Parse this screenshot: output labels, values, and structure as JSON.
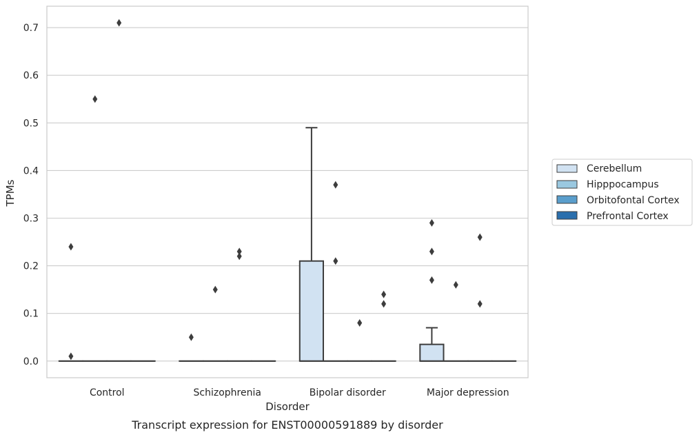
{
  "chart_data": {
    "type": "box",
    "caption": "Transcript expression for ENST00000591889 by disorder",
    "xlabel": "Disorder",
    "ylabel": "TPMs",
    "ylim": [
      -0.035,
      0.745
    ],
    "yticks": [
      0.0,
      0.1,
      0.2,
      0.3,
      0.4,
      0.5,
      0.6,
      0.7
    ],
    "ytick_labels": [
      "0.0",
      "0.1",
      "0.2",
      "0.3",
      "0.4",
      "0.5",
      "0.6",
      "0.7"
    ],
    "grid": "horizontal",
    "categories": [
      "Control",
      "Schizophrenia",
      "Bipolar disorder",
      "Major depression"
    ],
    "legend": {
      "placement": "right, outside plot"
    },
    "series": [
      {
        "name": "Cerebellum",
        "color": "#d1e2f2",
        "boxes": [
          {
            "q1": 0,
            "median": 0,
            "q3": 0,
            "whisker_low": 0,
            "whisker_high": 0,
            "outliers": [
              0.01,
              0.24
            ]
          },
          {
            "q1": 0,
            "median": 0,
            "q3": 0,
            "whisker_low": 0,
            "whisker_high": 0,
            "outliers": [
              0.05
            ]
          },
          {
            "q1": 0,
            "median": 0,
            "q3": 0.21,
            "whisker_low": 0,
            "whisker_high": 0.49,
            "outliers": []
          },
          {
            "q1": 0,
            "median": 0,
            "q3": 0.035,
            "whisker_low": 0,
            "whisker_high": 0.07,
            "outliers": [
              0.17,
              0.23,
              0.29
            ]
          }
        ]
      },
      {
        "name": "Hipppocampus",
        "color": "#9ac8e0",
        "boxes": [
          {
            "q1": 0,
            "median": 0,
            "q3": 0,
            "whisker_low": 0,
            "whisker_high": 0,
            "outliers": [
              0.55
            ]
          },
          {
            "q1": 0,
            "median": 0,
            "q3": 0,
            "whisker_low": 0,
            "whisker_high": 0,
            "outliers": [
              0.15
            ]
          },
          {
            "q1": 0,
            "median": 0,
            "q3": 0,
            "whisker_low": 0,
            "whisker_high": 0,
            "outliers": [
              0.21,
              0.37
            ]
          },
          {
            "q1": 0,
            "median": 0,
            "q3": 0,
            "whisker_low": 0,
            "whisker_high": 0,
            "outliers": [
              0.16
            ]
          }
        ]
      },
      {
        "name": "Orbitofontal Cortex",
        "color": "#5a9ecc",
        "boxes": [
          {
            "q1": 0,
            "median": 0,
            "q3": 0,
            "whisker_low": 0,
            "whisker_high": 0,
            "outliers": [
              0.71
            ]
          },
          {
            "q1": 0,
            "median": 0,
            "q3": 0,
            "whisker_low": 0,
            "whisker_high": 0,
            "outliers": [
              0.22,
              0.23
            ]
          },
          {
            "q1": 0,
            "median": 0,
            "q3": 0,
            "whisker_low": 0,
            "whisker_high": 0,
            "outliers": [
              0.08
            ]
          },
          {
            "q1": 0,
            "median": 0,
            "q3": 0,
            "whisker_low": 0,
            "whisker_high": 0,
            "outliers": [
              0.12,
              0.26
            ]
          }
        ]
      },
      {
        "name": "Prefrontal Cortex",
        "color": "#2a6fad",
        "boxes": [
          {
            "q1": 0,
            "median": 0,
            "q3": 0,
            "whisker_low": 0,
            "whisker_high": 0,
            "outliers": []
          },
          {
            "q1": 0,
            "median": 0,
            "q3": 0,
            "whisker_low": 0,
            "whisker_high": 0,
            "outliers": []
          },
          {
            "q1": 0,
            "median": 0,
            "q3": 0,
            "whisker_low": 0,
            "whisker_high": 0,
            "outliers": [
              0.12,
              0.14
            ]
          },
          {
            "q1": 0,
            "median": 0,
            "q3": 0,
            "whisker_low": 0,
            "whisker_high": 0,
            "outliers": []
          }
        ]
      }
    ]
  }
}
